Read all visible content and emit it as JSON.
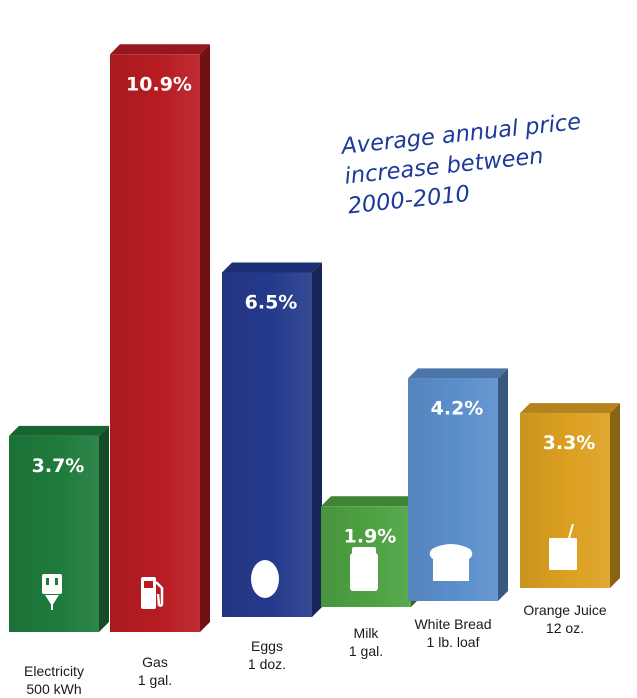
{
  "chart_data": {
    "type": "bar",
    "title_lines": [
      "Average annual price",
      "increase between",
      "2000-2010"
    ],
    "unit": "%",
    "categories": [
      {
        "name": "Electricity",
        "detail": "500 kWh",
        "icon": "electric-outlet-icon"
      },
      {
        "name": "Gas",
        "detail": "1 gal.",
        "icon": "gas-pump-icon"
      },
      {
        "name": "Eggs",
        "detail": "1 doz.",
        "icon": "egg-icon"
      },
      {
        "name": "Milk",
        "detail": "1 gal.",
        "icon": "milk-carton-icon"
      },
      {
        "name": "White Bread",
        "detail": "1 lb. loaf",
        "icon": "bread-loaf-icon"
      },
      {
        "name": "Orange Juice",
        "detail": "12 oz.",
        "icon": "juice-box-icon"
      }
    ],
    "values": [
      3.7,
      10.9,
      6.5,
      1.9,
      4.2,
      3.3
    ],
    "value_labels": [
      "3.7%",
      "10.9%",
      "6.5%",
      "1.9%",
      "4.2%",
      "3.3%"
    ],
    "colors": {
      "electricity": "#1e7b3c",
      "gas": "#b71c22",
      "eggs": "#253a8c",
      "milk": "#4ea142",
      "bread": "#5b8fcc",
      "juice": "#dca021",
      "title": "#1b3a9a"
    },
    "grid": false,
    "legend": "none",
    "style": "3d-bars"
  }
}
